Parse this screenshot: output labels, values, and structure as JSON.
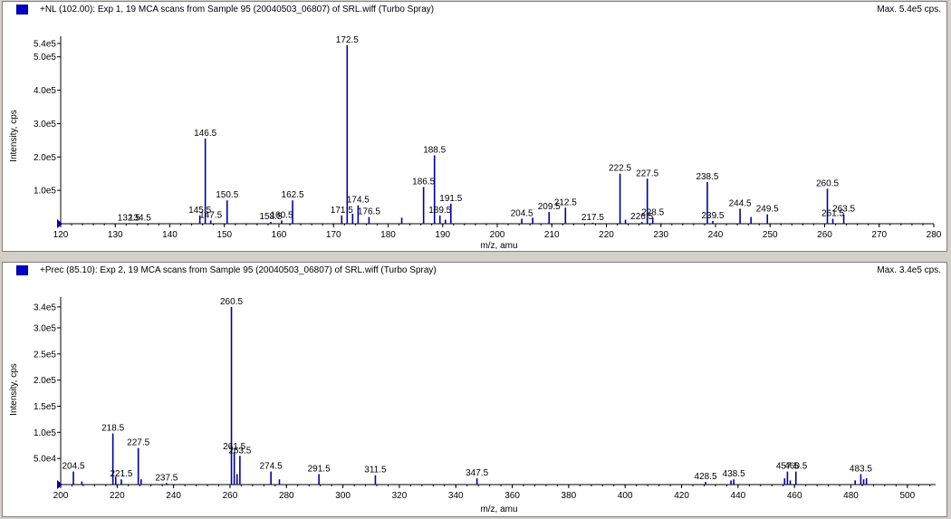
{
  "chart_data": [
    {
      "type": "bar",
      "title": "+NL (102.00): Exp 1, 19 MCA scans from Sample 95 (20040503_06807) of SRL.wiff (Turbo Spray)",
      "max_label": "Max. 5.4e5 cps.",
      "xlabel": "m/z, amu",
      "ylabel": "Intensity, cps",
      "xlim": [
        120,
        280
      ],
      "ylim": [
        0,
        540000
      ],
      "x_ticks": [
        120,
        130,
        140,
        150,
        160,
        170,
        180,
        190,
        200,
        210,
        220,
        230,
        240,
        250,
        260,
        270,
        280
      ],
      "y_ticks": [
        {
          "value": 100000,
          "label": "1.0e5"
        },
        {
          "value": 200000,
          "label": "2.0e5"
        },
        {
          "value": 300000,
          "label": "3.0e5"
        },
        {
          "value": 400000,
          "label": "4.0e5"
        },
        {
          "value": 500000,
          "label": "5.0e5"
        },
        {
          "value": 540000,
          "label": "5.4e5"
        }
      ],
      "peaks": [
        {
          "x": 132.5,
          "y": 2000,
          "label": "132.5"
        },
        {
          "x": 134.5,
          "y": 2000,
          "label": "134.5"
        },
        {
          "x": 145.5,
          "y": 25000,
          "label": "145.5"
        },
        {
          "x": 146.5,
          "y": 255000,
          "label": "146.5"
        },
        {
          "x": 147.5,
          "y": 10000,
          "label": "147.5"
        },
        {
          "x": 150.5,
          "y": 70000,
          "label": "150.5"
        },
        {
          "x": 158.5,
          "y": 5000,
          "label": "158.5"
        },
        {
          "x": 160.5,
          "y": 10000,
          "label": "160.5"
        },
        {
          "x": 162.5,
          "y": 70000,
          "label": "162.5"
        },
        {
          "x": 171.5,
          "y": 25000,
          "label": "171.5"
        },
        {
          "x": 172.5,
          "y": 535000,
          "label": "172.5"
        },
        {
          "x": 173.5,
          "y": 30000
        },
        {
          "x": 174.5,
          "y": 55000,
          "label": "174.5"
        },
        {
          "x": 176.5,
          "y": 20000,
          "label": "176.5"
        },
        {
          "x": 182.5,
          "y": 18000
        },
        {
          "x": 186.5,
          "y": 110000,
          "label": "186.5"
        },
        {
          "x": 188.5,
          "y": 205000,
          "label": "188.5"
        },
        {
          "x": 189.5,
          "y": 25000,
          "label": "189.5"
        },
        {
          "x": 190.5,
          "y": 12000
        },
        {
          "x": 191.5,
          "y": 60000,
          "label": "191.5"
        },
        {
          "x": 204.5,
          "y": 15000,
          "label": "204.5"
        },
        {
          "x": 206.5,
          "y": 18000
        },
        {
          "x": 209.5,
          "y": 35000,
          "label": "209.5"
        },
        {
          "x": 212.5,
          "y": 48000,
          "label": "212.5"
        },
        {
          "x": 217.5,
          "y": 3000,
          "label": "217.5"
        },
        {
          "x": 222.5,
          "y": 150000,
          "label": "222.5"
        },
        {
          "x": 223.5,
          "y": 12000
        },
        {
          "x": 226.5,
          "y": 5000,
          "label": "226.5"
        },
        {
          "x": 227.5,
          "y": 135000,
          "label": "227.5"
        },
        {
          "x": 228.5,
          "y": 18000,
          "label": "228.5"
        },
        {
          "x": 238.5,
          "y": 125000,
          "label": "238.5"
        },
        {
          "x": 239.5,
          "y": 8000,
          "label": "239.5"
        },
        {
          "x": 244.5,
          "y": 45000,
          "label": "244.5"
        },
        {
          "x": 246.5,
          "y": 20000
        },
        {
          "x": 249.5,
          "y": 28000,
          "label": "249.5"
        },
        {
          "x": 260.5,
          "y": 105000,
          "label": "260.5"
        },
        {
          "x": 261.5,
          "y": 15000,
          "label": "261.5"
        },
        {
          "x": 263.5,
          "y": 28000,
          "label": "263.5"
        }
      ]
    },
    {
      "type": "bar",
      "title": "+Prec (85.10): Exp 2, 19 MCA scans from Sample 95 (20040503_06807) of SRL.wiff (Turbo Spray)",
      "max_label": "Max. 3.4e5 cps.",
      "xlabel": "m/z, amu",
      "ylabel": "Intensity, cps",
      "xlim": [
        200,
        510
      ],
      "ylim": [
        0,
        345000
      ],
      "x_ticks": [
        200,
        220,
        240,
        260,
        280,
        300,
        320,
        340,
        360,
        380,
        400,
        420,
        440,
        460,
        480,
        500
      ],
      "y_ticks": [
        {
          "value": 50000,
          "label": "5.0e4"
        },
        {
          "value": 100000,
          "label": "1.0e5"
        },
        {
          "value": 150000,
          "label": "1.5e5"
        },
        {
          "value": 200000,
          "label": "2.0e5"
        },
        {
          "value": 250000,
          "label": "2.5e5"
        },
        {
          "value": 300000,
          "label": "3.0e5"
        },
        {
          "value": 340000,
          "label": "3.4e5"
        }
      ],
      "peaks": [
        {
          "x": 204.5,
          "y": 25000,
          "label": "204.5"
        },
        {
          "x": 207.5,
          "y": 6000
        },
        {
          "x": 218.5,
          "y": 98000,
          "label": "218.5"
        },
        {
          "x": 219.5,
          "y": 15000
        },
        {
          "x": 221.5,
          "y": 10000,
          "label": "221.5"
        },
        {
          "x": 227.5,
          "y": 70000,
          "label": "227.5"
        },
        {
          "x": 228.5,
          "y": 10000
        },
        {
          "x": 237.5,
          "y": 3000,
          "label": "237.5"
        },
        {
          "x": 260.5,
          "y": 340000,
          "label": "260.5"
        },
        {
          "x": 261.5,
          "y": 62000,
          "label": "261.5"
        },
        {
          "x": 262.5,
          "y": 20000
        },
        {
          "x": 263.5,
          "y": 55000,
          "label": "263.5"
        },
        {
          "x": 274.5,
          "y": 25000,
          "label": "274.5"
        },
        {
          "x": 277.5,
          "y": 10000
        },
        {
          "x": 291.5,
          "y": 20000,
          "label": "291.5"
        },
        {
          "x": 311.5,
          "y": 18000,
          "label": "311.5"
        },
        {
          "x": 347.5,
          "y": 12000,
          "label": "347.5"
        },
        {
          "x": 428.5,
          "y": 5000,
          "label": "428.5"
        },
        {
          "x": 437.5,
          "y": 8000
        },
        {
          "x": 438.5,
          "y": 10000,
          "label": "438.5"
        },
        {
          "x": 456.5,
          "y": 12000
        },
        {
          "x": 457.5,
          "y": 25000,
          "label": "457.5"
        },
        {
          "x": 458.5,
          "y": 8000
        },
        {
          "x": 460.5,
          "y": 25000,
          "label": "460.5"
        },
        {
          "x": 481.5,
          "y": 8000
        },
        {
          "x": 483.5,
          "y": 20000,
          "label": "483.5"
        },
        {
          "x": 484.5,
          "y": 10000
        },
        {
          "x": 485.5,
          "y": 12000
        }
      ]
    }
  ]
}
